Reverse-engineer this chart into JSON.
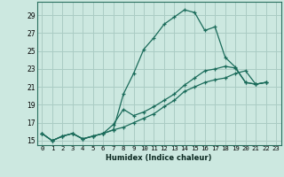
{
  "xlabel": "Humidex (Indice chaleur)",
  "bg_color": "#cce8e0",
  "grid_color": "#aaccc4",
  "line_color": "#1a6b5a",
  "xlim": [
    -0.5,
    23.5
  ],
  "ylim": [
    14.5,
    30.5
  ],
  "xticks": [
    0,
    1,
    2,
    3,
    4,
    5,
    6,
    7,
    8,
    9,
    10,
    11,
    12,
    13,
    14,
    15,
    16,
    17,
    18,
    19,
    20,
    21,
    22,
    23
  ],
  "yticks": [
    15,
    17,
    19,
    21,
    23,
    25,
    27,
    29
  ],
  "series": [
    [
      15.8,
      15.0,
      15.5,
      15.8,
      15.2,
      15.5,
      15.8,
      16.2,
      20.2,
      22.5,
      25.2,
      26.5,
      28.0,
      28.8,
      29.6,
      29.3,
      27.3,
      27.7,
      24.3,
      23.2,
      21.5,
      21.3,
      21.5
    ],
    [
      15.8,
      15.0,
      15.5,
      15.8,
      15.2,
      15.5,
      15.8,
      16.8,
      18.5,
      17.8,
      18.2,
      18.8,
      19.5,
      20.2,
      21.2,
      22.0,
      22.8,
      23.0,
      23.3,
      23.1,
      21.5,
      21.3,
      21.5
    ],
    [
      15.8,
      15.0,
      15.5,
      15.8,
      15.2,
      15.5,
      15.8,
      16.2,
      16.5,
      17.0,
      17.5,
      18.0,
      18.8,
      19.5,
      20.5,
      21.0,
      21.5,
      21.8,
      22.0,
      22.5,
      22.8,
      21.3,
      21.5
    ]
  ]
}
